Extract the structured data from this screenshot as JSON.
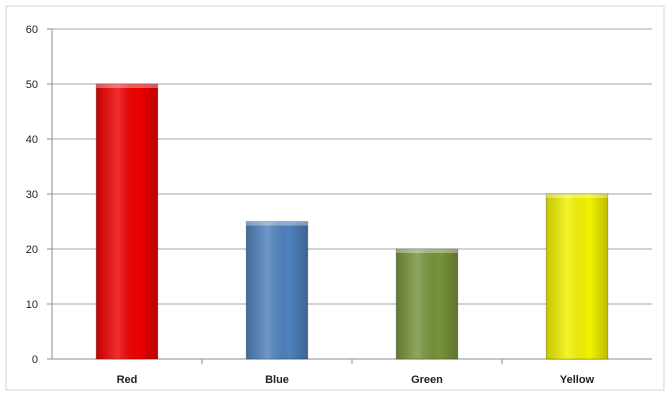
{
  "chart_data": {
    "type": "bar",
    "title": "",
    "xlabel": "",
    "ylabel": "",
    "categories": [
      "Red",
      "Blue",
      "Green",
      "Yellow"
    ],
    "values": [
      50,
      25,
      20,
      30
    ],
    "bar_colors": [
      "#ee0000",
      "#4f81bd",
      "#77933c",
      "#f2f200"
    ],
    "ylim": [
      0,
      60
    ],
    "yticks": [
      "0",
      "10",
      "20",
      "30",
      "40",
      "50",
      "60"
    ],
    "grid": true,
    "legend": "none"
  }
}
